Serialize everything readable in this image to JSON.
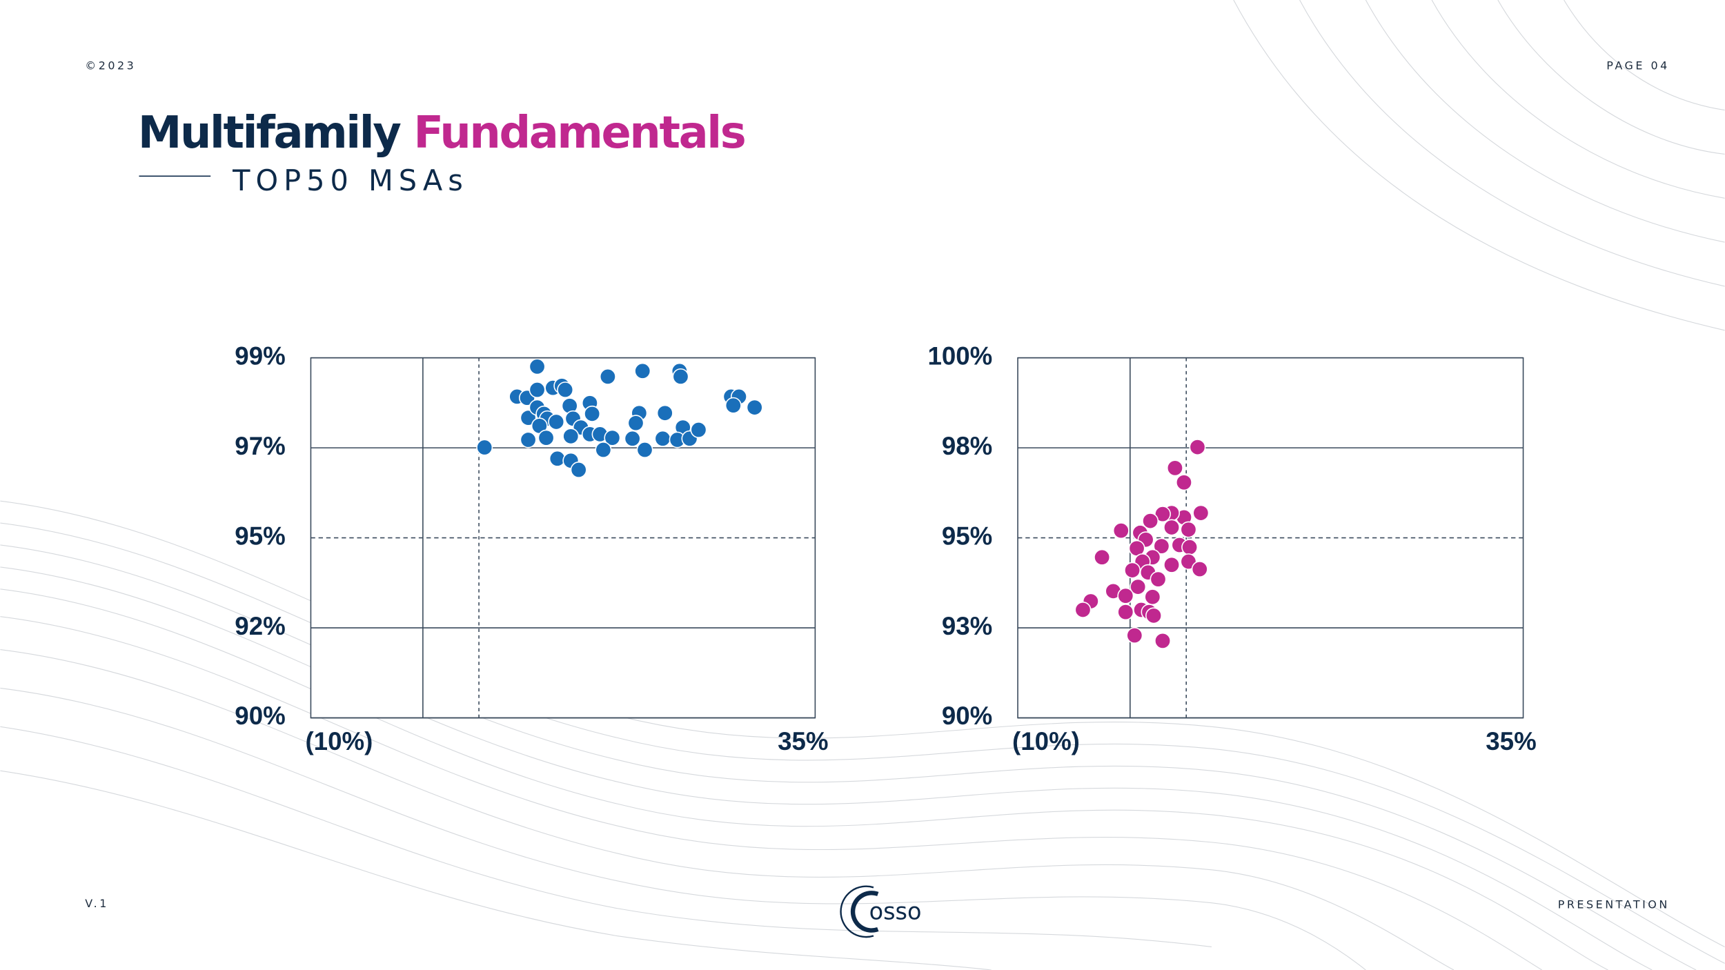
{
  "header": {
    "copyright": "©2023",
    "page": "PAGE 04",
    "title_part1": "Multifamily",
    "title_part2": "Fundamentals",
    "subtitle": "TOP50 MSAs"
  },
  "chart_data": [
    {
      "type": "scatter",
      "color": "#1a6fba",
      "x": [
        5.5,
        10.2,
        8.4,
        9.3,
        10.2,
        11.6,
        12.4,
        12.7,
        9.4,
        10.2,
        10.8,
        11.1,
        10.4,
        9.4,
        11.0,
        11.9,
        13.1,
        13.4,
        14.1,
        13.2,
        14.9,
        15.1,
        14.9,
        15.8,
        16.9,
        16.1,
        12.0,
        13.2,
        13.9,
        16.5,
        19.6,
        19.3,
        19.0,
        18.7,
        19.8,
        21.6,
        21.4,
        22.9,
        23.0,
        23.2,
        22.7,
        23.8,
        24.6,
        27.5,
        28.2,
        27.7,
        29.6
      ],
      "values": [
        96.76,
        98.78,
        98.03,
        98.0,
        98.2,
        98.25,
        98.3,
        98.2,
        97.5,
        97.76,
        97.6,
        97.48,
        97.3,
        96.95,
        97.0,
        97.4,
        97.8,
        97.48,
        97.26,
        97.04,
        97.87,
        97.6,
        97.09,
        97.09,
        97.0,
        96.7,
        96.48,
        96.43,
        96.2,
        98.53,
        98.67,
        97.62,
        97.37,
        96.98,
        96.7,
        97.62,
        96.98,
        98.67,
        98.53,
        97.26,
        96.95,
        96.98,
        97.2,
        98.03,
        98.03,
        97.81,
        97.76
      ],
      "xlim": [
        -10,
        35
      ],
      "xticks": [
        {
          "value": -10,
          "label": "(10%)"
        },
        {
          "value": 35,
          "label": "35%"
        }
      ],
      "vlines": [
        {
          "value": 0,
          "dashed": false
        },
        {
          "value": 5,
          "dashed": true
        }
      ],
      "ylim": [
        90,
        99
      ],
      "yticks": [
        {
          "value": 90,
          "label": "90%"
        },
        {
          "value": 92.25,
          "label": "92%"
        },
        {
          "value": 94.5,
          "label": "95%"
        },
        {
          "value": 96.75,
          "label": "97%"
        },
        {
          "value": 99,
          "label": "99%"
        }
      ],
      "dashed_y": 94.5,
      "grid": true
    },
    {
      "type": "scatter",
      "color": "#c0288f",
      "x": [
        6.0,
        4.0,
        4.8,
        6.3,
        4.8,
        3.7,
        2.9,
        1.8,
        3.7,
        5.2,
        -0.8,
        0.9,
        1.4,
        0.6,
        2.8,
        4.4,
        5.3,
        -2.5,
        2.0,
        1.1,
        3.7,
        5.2,
        6.2,
        0.2,
        1.6,
        2.5,
        0.7,
        -1.5,
        -0.4,
        2.0,
        -3.5,
        -4.2,
        -0.4,
        1.0,
        1.7,
        2.1,
        0.4,
        2.9
      ],
      "values": [
        97.52,
        96.94,
        96.54,
        95.69,
        95.57,
        95.69,
        95.66,
        95.47,
        95.29,
        95.23,
        95.2,
        95.14,
        94.95,
        94.71,
        94.77,
        94.8,
        94.74,
        94.46,
        94.46,
        94.34,
        94.25,
        94.34,
        94.13,
        94.1,
        94.04,
        93.85,
        93.64,
        93.52,
        93.39,
        93.36,
        93.24,
        93.0,
        92.94,
        93.0,
        92.94,
        92.84,
        92.29,
        92.14
      ],
      "xlim": [
        -10,
        35
      ],
      "xticks": [
        {
          "value": -10,
          "label": "(10%)"
        },
        {
          "value": 35,
          "label": "35%"
        }
      ],
      "vlines": [
        {
          "value": 0,
          "dashed": false
        },
        {
          "value": 5,
          "dashed": true
        }
      ],
      "ylim": [
        90,
        100
      ],
      "yticks": [
        {
          "value": 90,
          "label": "90%"
        },
        {
          "value": 92.5,
          "label": "93%"
        },
        {
          "value": 95,
          "label": "95%"
        },
        {
          "value": 97.5,
          "label": "98%"
        },
        {
          "value": 100,
          "label": "100%"
        }
      ],
      "dashed_y": 95,
      "grid": true
    }
  ],
  "footer": {
    "version": "V.1",
    "logo": "osso",
    "label": "PRESENTATION"
  }
}
